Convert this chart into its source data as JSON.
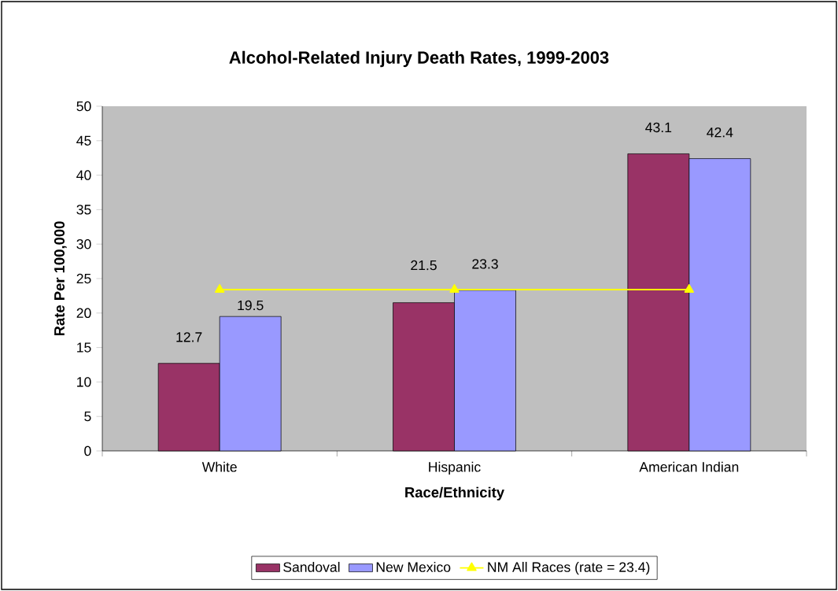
{
  "chart_data": {
    "type": "bar",
    "title": "Alcohol-Related Injury Death Rates, 1999-2003",
    "xlabel": "Race/Ethnicity",
    "ylabel": "Rate Per 100,000",
    "categories": [
      "White",
      "Hispanic",
      "American Indian"
    ],
    "series": [
      {
        "name": "Sandoval",
        "color": "#993366",
        "values": [
          12.7,
          21.5,
          43.1
        ],
        "value_labels": [
          "12.7",
          "21.5",
          "43.1"
        ]
      },
      {
        "name": "New Mexico",
        "color": "#9999ff",
        "values": [
          19.5,
          23.3,
          42.4
        ],
        "value_labels": [
          "19.5",
          "23.3",
          "42.4"
        ]
      },
      {
        "name": "NM All Races (rate = 23.4)",
        "type": "line",
        "color": "#ffff00",
        "marker": "triangle",
        "values": [
          23.4,
          23.4,
          23.4
        ]
      }
    ],
    "ylim": [
      0,
      50
    ],
    "yticks": [
      0,
      5,
      10,
      15,
      20,
      25,
      30,
      35,
      40,
      45,
      50
    ],
    "legend": "bottom"
  }
}
